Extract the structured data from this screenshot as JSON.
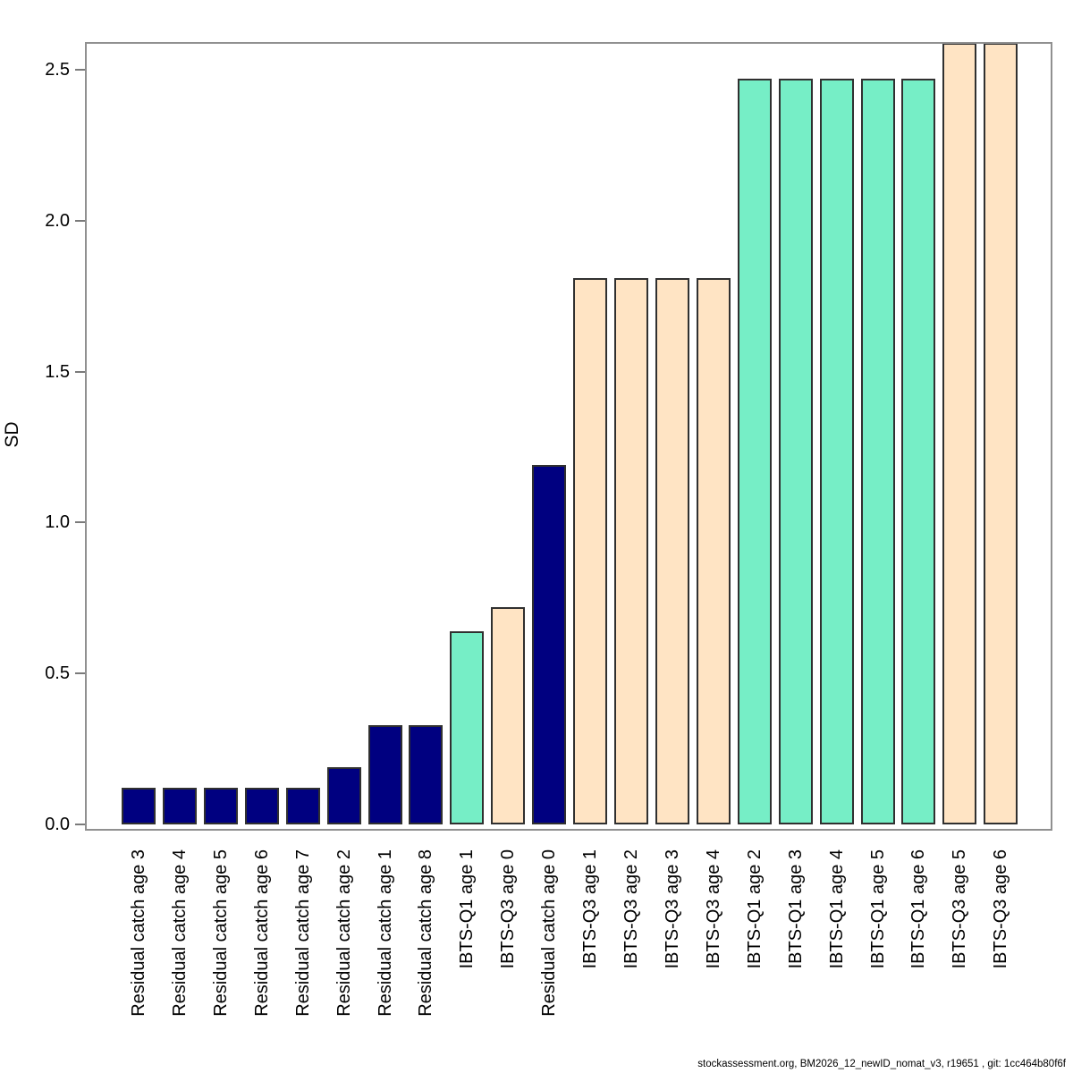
{
  "figure": {
    "ylabel": "SD",
    "footer": "stockassessment.org, BM2026_12_newID_nomat_v3, r19651 , git: 1cc464b80f6f"
  },
  "chart_data": {
    "type": "bar",
    "title": "",
    "xlabel": "",
    "ylabel": "SD",
    "categories": [
      "Residual catch age 3",
      "Residual catch age 4",
      "Residual catch age 5",
      "Residual catch age 6",
      "Residual catch age 7",
      "Residual catch age 2",
      "Residual catch age 1",
      "Residual catch age 8",
      "IBTS-Q1 age 1",
      "IBTS-Q3 age 0",
      "Residual catch age 0",
      "IBTS-Q3 age 1",
      "IBTS-Q3 age 2",
      "IBTS-Q3 age 3",
      "IBTS-Q3 age 4",
      "IBTS-Q1 age 2",
      "IBTS-Q1 age 3",
      "IBTS-Q1 age 4",
      "IBTS-Q1 age 5",
      "IBTS-Q1 age 6",
      "IBTS-Q3 age 5",
      "IBTS-Q3 age 6"
    ],
    "values": [
      0.12,
      0.12,
      0.12,
      0.12,
      0.12,
      0.19,
      0.33,
      0.33,
      0.64,
      0.72,
      1.19,
      1.81,
      1.81,
      1.81,
      1.81,
      2.47,
      2.47,
      2.47,
      2.47,
      2.47,
      2.59,
      2.59
    ],
    "bar_colors": [
      "#000080",
      "#000080",
      "#000080",
      "#000080",
      "#000080",
      "#000080",
      "#000080",
      "#000080",
      "#76EEC6",
      "#FFE4C4",
      "#000080",
      "#FFE4C4",
      "#FFE4C4",
      "#FFE4C4",
      "#FFE4C4",
      "#76EEC6",
      "#76EEC6",
      "#76EEC6",
      "#76EEC6",
      "#76EEC6",
      "#FFE4C4",
      "#FFE4C4"
    ],
    "groups": [
      {
        "name": "Residual catch",
        "color": "#000080"
      },
      {
        "name": "IBTS-Q1",
        "color": "#76EEC6"
      },
      {
        "name": "IBTS-Q3",
        "color": "#FFE4C4"
      }
    ],
    "yticks": [
      0.0,
      0.5,
      1.0,
      1.5,
      2.0,
      2.5
    ],
    "ytick_labels": [
      "0.0",
      "0.5",
      "1.0",
      "1.5",
      "2.0",
      "2.5"
    ],
    "ylim": [
      -0.02,
      2.59
    ],
    "grid": false,
    "legend": "none",
    "bars_clipped_at_top": [
      "IBTS-Q3 age 5",
      "IBTS-Q3 age 6"
    ],
    "axis_color": "#909090",
    "bar_border_color": "#303030"
  }
}
